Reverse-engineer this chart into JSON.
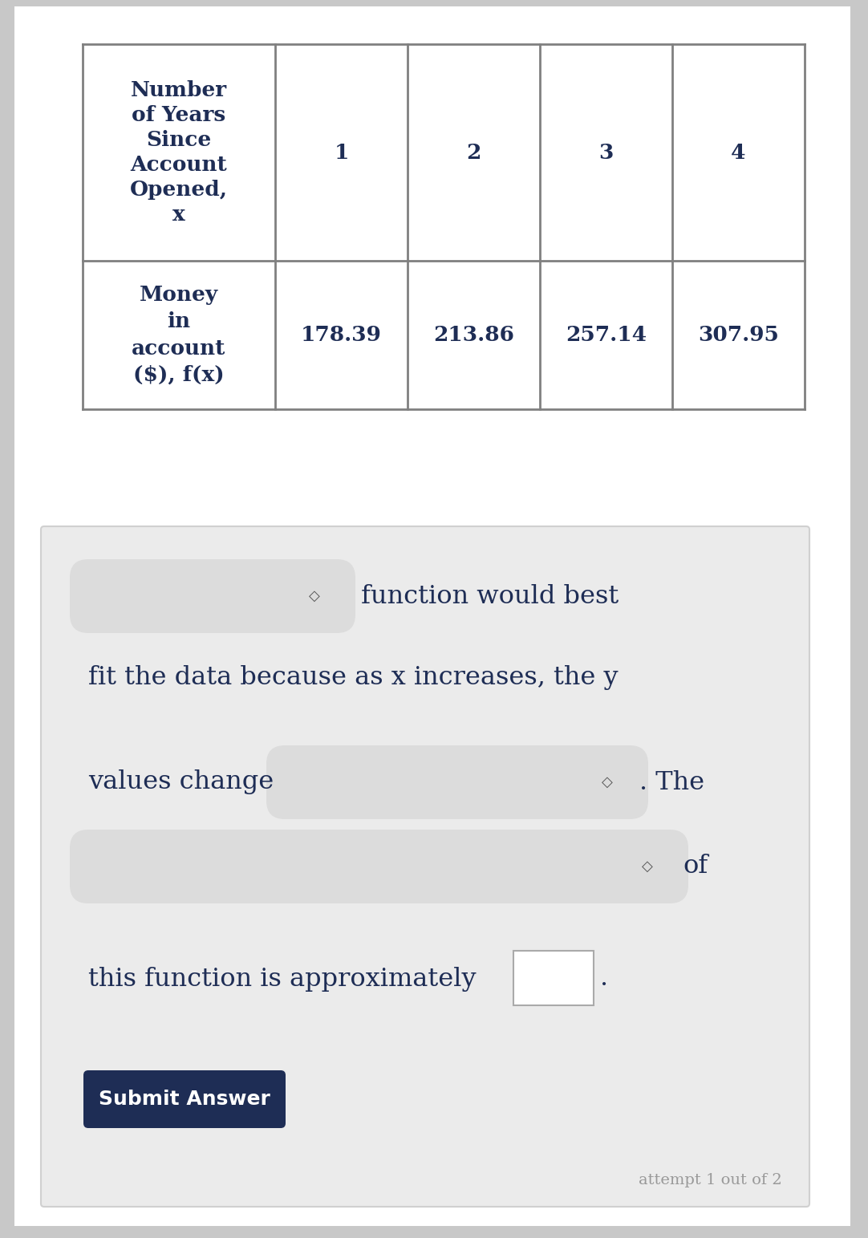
{
  "table_header_row": [
    "Number\nof Years\nSince\nAccount\nOpened,\nx",
    "1",
    "2",
    "3",
    "4"
  ],
  "table_data_row": [
    "Money\nin\naccount\n($), f(x)",
    "178.39",
    "213.86",
    "257.14",
    "307.95"
  ],
  "text_line1": " function would best",
  "text_line2": "fit the data because as x increases, the y",
  "text_line3": "values change",
  "text_dot_the": ". The",
  "text_of": "of",
  "text_line5": "this function is approximately",
  "button_text": "Submit Answer",
  "attempt_text": "attempt 1 out of 2",
  "page_bg": "#c8c8c8",
  "white_bg": "#ffffff",
  "table_border_color": "#808080",
  "text_color": "#1e2d55",
  "card_bg": "#ebebeb",
  "card_border": "#d0d0d0",
  "dropdown_bg": "#dcdcdc",
  "button_bg": "#1e2d55",
  "button_text_color": "#ffffff",
  "attempt_text_color": "#999999",
  "input_box_color": "#ffffff",
  "input_box_border": "#aaaaaa"
}
